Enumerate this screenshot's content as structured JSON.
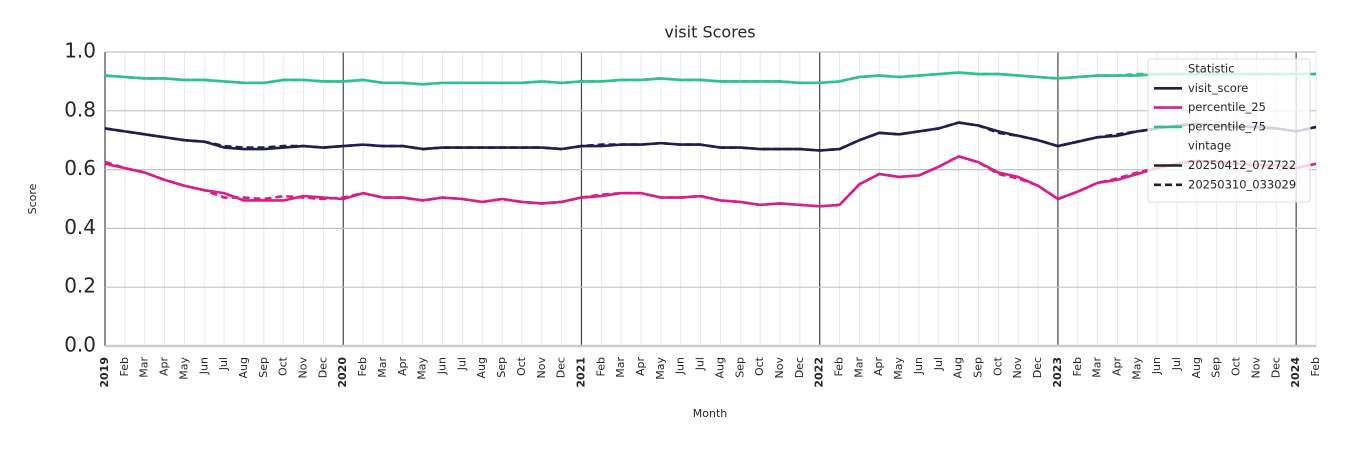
{
  "chart_data": {
    "type": "line",
    "title": "visit Scores",
    "x_label": "Month",
    "y_label": "Score",
    "categories": [
      "2019",
      "Feb",
      "Mar",
      "Apr",
      "May",
      "Jun",
      "Jul",
      "Aug",
      "Sep",
      "Oct",
      "Nov",
      "Dec",
      "2020",
      "Feb",
      "Mar",
      "Apr",
      "May",
      "Jun",
      "Jul",
      "Aug",
      "Sep",
      "Oct",
      "Nov",
      "Dec",
      "2021",
      "Feb",
      "Mar",
      "Apr",
      "May",
      "Jun",
      "Jul",
      "Aug",
      "Sep",
      "Oct",
      "Nov",
      "Dec",
      "2022",
      "Feb",
      "Mar",
      "Apr",
      "May",
      "Jun",
      "Jul",
      "Aug",
      "Sep",
      "Oct",
      "Nov",
      "Dec",
      "2023",
      "Feb",
      "Mar",
      "Apr",
      "May",
      "Jun",
      "Jul",
      "Aug",
      "Sep",
      "Oct",
      "Nov",
      "Dec",
      "2024",
      "Feb"
    ],
    "ylim": [
      0,
      1
    ],
    "yticks": [
      {
        "value": 0,
        "label": "0.0"
      },
      {
        "value": 0.2,
        "label": "0.2"
      },
      {
        "value": 0.4,
        "label": "0.4"
      },
      {
        "value": 0.6,
        "label": "0.6"
      },
      {
        "value": 0.8,
        "label": "0.8"
      },
      {
        "value": 1,
        "label": "1.0"
      }
    ],
    "grid": true,
    "legend_position": "upper right",
    "legend": [
      {
        "title": "Statistic",
        "entries": [
          {
            "name": "visit_score",
            "color": "#1f1f4f"
          },
          {
            "name": "percentile_25",
            "color": "#d61f88"
          },
          {
            "name": "percentile_75",
            "color": "#2ec08d"
          }
        ]
      },
      {
        "title": "vintage",
        "entries": [
          {
            "name": "20250412_072722",
            "dash": "solid"
          },
          {
            "name": "20250310_033029",
            "dash": "dashed"
          }
        ]
      }
    ],
    "series": [
      {
        "statistic": "percentile_75",
        "vintage": "20250310_033029",
        "values": [
          0.92,
          0.915,
          0.91,
          0.91,
          0.905,
          0.905,
          0.9,
          0.895,
          0.895,
          0.905,
          0.905,
          0.9,
          0.9,
          0.905,
          0.895,
          0.895,
          0.89,
          0.895,
          0.895,
          0.895,
          0.895,
          0.895,
          0.9,
          0.895,
          0.9,
          0.9,
          0.905,
          0.905,
          0.91,
          0.905,
          0.905,
          0.9,
          0.9,
          0.9,
          0.9,
          0.895,
          0.895,
          0.9,
          0.915,
          0.92,
          0.915,
          0.92,
          0.925,
          0.93,
          0.925,
          0.925,
          0.92,
          0.915,
          0.91,
          0.915,
          0.92,
          0.92,
          0.925,
          0.925,
          0.925,
          0.925,
          0.925,
          0.925,
          0.925,
          0.925,
          0.925,
          0.925
        ]
      },
      {
        "statistic": "percentile_75",
        "vintage": "20250412_072722",
        "values": [
          0.92,
          0.915,
          0.91,
          0.91,
          0.905,
          0.905,
          0.9,
          0.895,
          0.895,
          0.905,
          0.905,
          0.9,
          0.9,
          0.905,
          0.895,
          0.895,
          0.89,
          0.895,
          0.895,
          0.895,
          0.895,
          0.895,
          0.9,
          0.895,
          0.9,
          0.9,
          0.905,
          0.905,
          0.91,
          0.905,
          0.905,
          0.9,
          0.9,
          0.9,
          0.9,
          0.895,
          0.895,
          0.9,
          0.915,
          0.92,
          0.915,
          0.92,
          0.925,
          0.93,
          0.925,
          0.925,
          0.92,
          0.915,
          0.91,
          0.915,
          0.92,
          0.92,
          0.92,
          0.925,
          0.925,
          0.925,
          0.925,
          0.925,
          0.925,
          0.925,
          0.925,
          0.925
        ]
      },
      {
        "statistic": "visit_score",
        "vintage": "20250310_033029",
        "values": [
          0.74,
          0.73,
          0.72,
          0.71,
          0.7,
          0.695,
          0.68,
          0.675,
          0.675,
          0.68,
          0.68,
          0.675,
          0.68,
          0.685,
          0.68,
          0.68,
          0.67,
          0.675,
          0.675,
          0.675,
          0.675,
          0.675,
          0.675,
          0.67,
          0.68,
          0.685,
          0.685,
          0.685,
          0.69,
          0.685,
          0.685,
          0.675,
          0.675,
          0.67,
          0.67,
          0.67,
          0.665,
          0.67,
          0.7,
          0.725,
          0.72,
          0.73,
          0.74,
          0.76,
          0.75,
          0.725,
          0.715,
          0.7,
          0.68,
          0.695,
          0.71,
          0.72,
          0.73,
          0.74,
          0.75,
          0.755,
          0.75,
          0.745,
          0.745,
          0.74,
          0.73,
          0.745
        ]
      },
      {
        "statistic": "visit_score",
        "vintage": "20250412_072722",
        "values": [
          0.74,
          0.73,
          0.72,
          0.71,
          0.7,
          0.695,
          0.675,
          0.67,
          0.67,
          0.675,
          0.68,
          0.675,
          0.68,
          0.685,
          0.68,
          0.68,
          0.67,
          0.675,
          0.675,
          0.675,
          0.675,
          0.675,
          0.675,
          0.67,
          0.68,
          0.68,
          0.685,
          0.685,
          0.69,
          0.685,
          0.685,
          0.675,
          0.675,
          0.67,
          0.67,
          0.67,
          0.665,
          0.67,
          0.7,
          0.725,
          0.72,
          0.73,
          0.74,
          0.76,
          0.75,
          0.73,
          0.715,
          0.7,
          0.68,
          0.695,
          0.71,
          0.715,
          0.73,
          0.74,
          0.75,
          0.755,
          0.75,
          0.745,
          0.745,
          0.74,
          0.73,
          0.745
        ]
      },
      {
        "statistic": "percentile_25",
        "vintage": "20250310_033029",
        "values": [
          0.626,
          0.605,
          0.59,
          0.565,
          0.545,
          0.53,
          0.505,
          0.505,
          0.5,
          0.51,
          0.505,
          0.5,
          0.505,
          0.52,
          0.505,
          0.505,
          0.495,
          0.505,
          0.5,
          0.49,
          0.5,
          0.49,
          0.485,
          0.49,
          0.505,
          0.515,
          0.52,
          0.52,
          0.505,
          0.505,
          0.51,
          0.495,
          0.49,
          0.48,
          0.485,
          0.48,
          0.475,
          0.48,
          0.55,
          0.585,
          0.575,
          0.58,
          0.61,
          0.645,
          0.625,
          0.585,
          0.57,
          0.545,
          0.5,
          0.525,
          0.555,
          0.57,
          0.59,
          0.605,
          0.62,
          0.63,
          0.625,
          0.62,
          0.615,
          0.615,
          0.605,
          0.62
        ]
      },
      {
        "statistic": "percentile_25",
        "vintage": "20250412_072722",
        "values": [
          0.62,
          0.605,
          0.59,
          0.565,
          0.545,
          0.53,
          0.52,
          0.495,
          0.495,
          0.495,
          0.51,
          0.505,
          0.5,
          0.52,
          0.505,
          0.505,
          0.495,
          0.505,
          0.5,
          0.49,
          0.5,
          0.49,
          0.485,
          0.49,
          0.505,
          0.51,
          0.52,
          0.52,
          0.505,
          0.505,
          0.51,
          0.495,
          0.49,
          0.48,
          0.485,
          0.48,
          0.475,
          0.48,
          0.55,
          0.585,
          0.575,
          0.58,
          0.61,
          0.645,
          0.625,
          0.59,
          0.575,
          0.545,
          0.5,
          0.525,
          0.555,
          0.565,
          0.585,
          0.605,
          0.62,
          0.63,
          0.625,
          0.62,
          0.615,
          0.615,
          0.605,
          0.62
        ]
      }
    ]
  }
}
